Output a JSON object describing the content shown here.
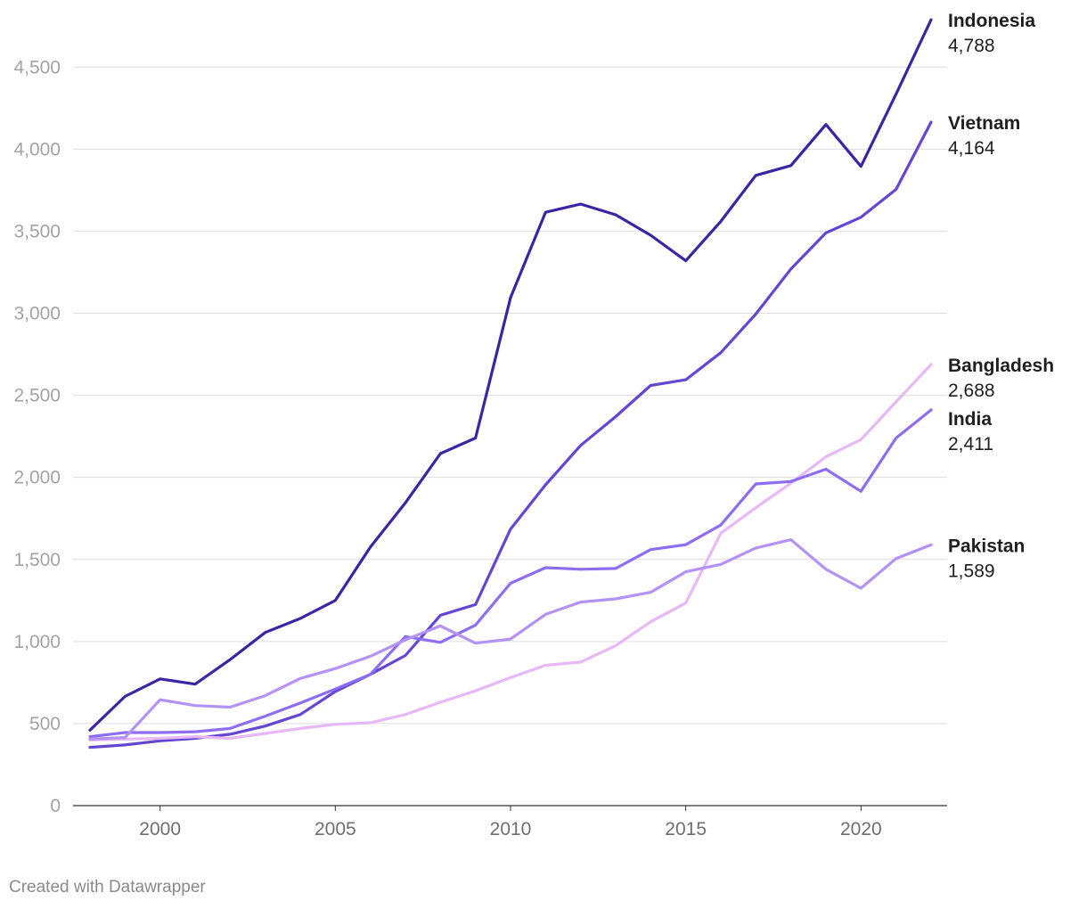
{
  "chart_data": {
    "type": "line",
    "title": "",
    "xlabel": "",
    "ylabel": "",
    "xlim": [
      1998,
      2022
    ],
    "ylim": [
      0,
      4800
    ],
    "yticks": [
      0,
      500,
      1000,
      1500,
      2000,
      2500,
      3000,
      3500,
      4000,
      4500
    ],
    "ytick_labels": [
      "0",
      "500",
      "1,000",
      "1,500",
      "2,000",
      "2,500",
      "3,000",
      "3,500",
      "4,000",
      "4,500"
    ],
    "xticks": [
      2000,
      2005,
      2010,
      2015,
      2020
    ],
    "xtick_labels": [
      "2000",
      "2005",
      "2010",
      "2015",
      "2020"
    ],
    "grid": true,
    "legend": "direct labels at line ends (right)",
    "x": [
      1998,
      1999,
      2000,
      2001,
      2002,
      2003,
      2004,
      2005,
      2006,
      2007,
      2008,
      2009,
      2010,
      2011,
      2012,
      2013,
      2014,
      2015,
      2016,
      2017,
      2018,
      2019,
      2020,
      2021,
      2022
    ],
    "series": [
      {
        "name": "Indonesia",
        "end_label": "4,788",
        "color": "#3b25a3",
        "values": [
          460,
          665,
          772,
          740,
          890,
          1055,
          1140,
          1250,
          1575,
          1845,
          2145,
          2240,
          3095,
          3615,
          3665,
          3600,
          3475,
          3320,
          3560,
          3840,
          3900,
          4150,
          3895,
          4335,
          4788
        ]
      },
      {
        "name": "Vietnam",
        "end_label": "4,164",
        "color": "#6546d2",
        "values": [
          355,
          370,
          395,
          410,
          435,
          485,
          555,
          695,
          800,
          915,
          1160,
          1225,
          1685,
          1955,
          2195,
          2370,
          2560,
          2595,
          2760,
          2995,
          3270,
          3490,
          3585,
          3755,
          4164
        ]
      },
      {
        "name": "Bangladesh",
        "end_label": "2,688",
        "color": "#e7b8f8",
        "values": [
          400,
          405,
          410,
          420,
          410,
          440,
          470,
          495,
          505,
          555,
          630,
          700,
          780,
          855,
          875,
          975,
          1120,
          1235,
          1660,
          1815,
          1965,
          2125,
          2230,
          2460,
          2688
        ]
      },
      {
        "name": "India",
        "end_label": "2,411",
        "color": "#8d6df0",
        "values": [
          420,
          445,
          445,
          450,
          470,
          545,
          625,
          710,
          800,
          1030,
          995,
          1100,
          1355,
          1450,
          1440,
          1445,
          1560,
          1590,
          1710,
          1960,
          1975,
          2050,
          1915,
          2240,
          2411
        ]
      },
      {
        "name": "Pakistan",
        "end_label": "1,589",
        "color": "#b292f5",
        "values": [
          405,
          415,
          645,
          610,
          600,
          670,
          775,
          835,
          910,
          1010,
          1095,
          990,
          1015,
          1165,
          1240,
          1260,
          1300,
          1425,
          1470,
          1570,
          1620,
          1440,
          1325,
          1505,
          1589
        ]
      }
    ]
  },
  "footer": "Created with Datawrapper"
}
